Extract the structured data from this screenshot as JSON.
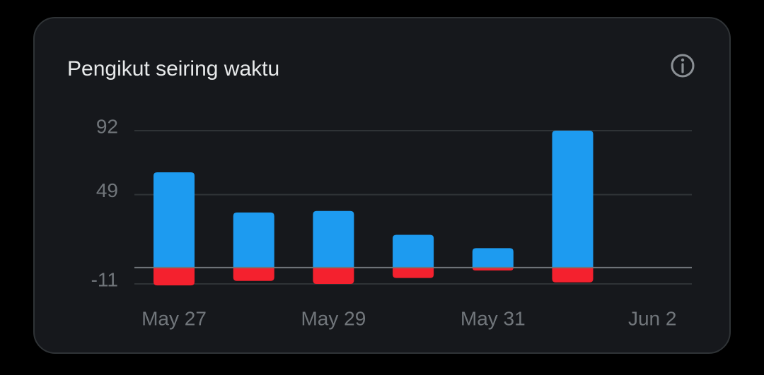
{
  "chart_data": {
    "type": "bar",
    "title": "Pengikut seiring waktu",
    "categories": [
      "May 27",
      null,
      "May 29",
      null,
      "May 31",
      null,
      "Jun 2"
    ],
    "series": [
      {
        "color": "#1d9bf0",
        "values": [
          64,
          37,
          38,
          22,
          13,
          92,
          null
        ]
      },
      {
        "color": "#f4212e",
        "values": [
          -12,
          -9,
          -11,
          -7,
          -2,
          -10,
          null
        ]
      }
    ],
    "ylim": [
      -11,
      92
    ],
    "yticks": [
      -11,
      49,
      92
    ],
    "grid": true
  }
}
